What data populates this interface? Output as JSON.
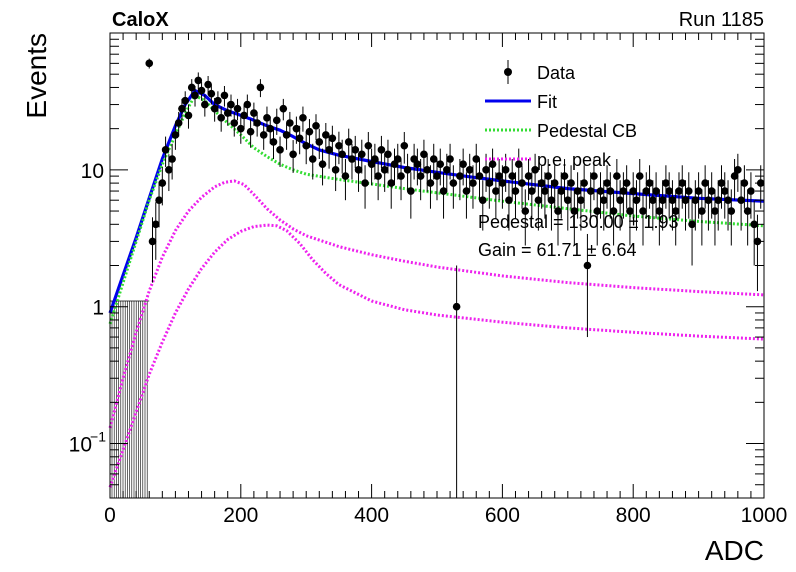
{
  "header": {
    "experiment": "CaloX",
    "run": "Run 1185"
  },
  "chart_data": {
    "type": "scatter",
    "xlabel": "ADC",
    "ylabel": "Events",
    "xlim": [
      0,
      1000
    ],
    "ylim": [
      0.04,
      100
    ],
    "y_scale": "log",
    "x_ticks": [
      0,
      200,
      400,
      600,
      800,
      1000
    ],
    "y_ticks": [
      {
        "value": 0.1,
        "base": "10",
        "exp": "−1"
      },
      {
        "value": 1,
        "base": "1",
        "exp": ""
      },
      {
        "value": 10,
        "base": "10",
        "exp": ""
      }
    ],
    "legend": {
      "position": "top-right",
      "entries": [
        {
          "label": "Data",
          "style": "marker"
        },
        {
          "label": "Fit",
          "style": "solid",
          "color": "#0000ee"
        },
        {
          "label": "Pedestal CB",
          "style": "dotted",
          "color": "#33dd33"
        },
        {
          "label": "p.e. peak",
          "style": "dotted",
          "color": "#ee22ee"
        }
      ]
    },
    "annotations": [
      "Pedestal = 130.00 ± 1.93",
      "Gain = 61.71 ± 6.64"
    ],
    "data_series": {
      "name": "Data",
      "points": [
        [
          60,
          60,
          5
        ],
        [
          65,
          3,
          1.5
        ],
        [
          70,
          4,
          1.8
        ],
        [
          75,
          6,
          2.2
        ],
        [
          80,
          8,
          2.5
        ],
        [
          85,
          14,
          3.5
        ],
        [
          90,
          10,
          3
        ],
        [
          95,
          12,
          3.5
        ],
        [
          100,
          18,
          4
        ],
        [
          105,
          22,
          4.5
        ],
        [
          110,
          28,
          5
        ],
        [
          115,
          32,
          5.5
        ],
        [
          120,
          25,
          5
        ],
        [
          125,
          40,
          6
        ],
        [
          130,
          35,
          6
        ],
        [
          135,
          45,
          6.5
        ],
        [
          140,
          38,
          6
        ],
        [
          145,
          30,
          5.5
        ],
        [
          150,
          42,
          6.5
        ],
        [
          155,
          36,
          6
        ],
        [
          160,
          28,
          5.5
        ],
        [
          165,
          32,
          5.5
        ],
        [
          170,
          24,
          5
        ],
        [
          175,
          35,
          6
        ],
        [
          180,
          26,
          5
        ],
        [
          185,
          30,
          5.5
        ],
        [
          190,
          22,
          4.5
        ],
        [
          195,
          28,
          5
        ],
        [
          200,
          20,
          4.5
        ],
        [
          205,
          25,
          5
        ],
        [
          210,
          30,
          5.5
        ],
        [
          215,
          19,
          4.5
        ],
        [
          220,
          26,
          5
        ],
        [
          225,
          22,
          4.5
        ],
        [
          230,
          40,
          6
        ],
        [
          235,
          18,
          4
        ],
        [
          240,
          24,
          5
        ],
        [
          245,
          20,
          4.5
        ],
        [
          250,
          16,
          4
        ],
        [
          255,
          23,
          5
        ],
        [
          260,
          14,
          3.5
        ],
        [
          265,
          28,
          5
        ],
        [
          270,
          18,
          4
        ],
        [
          275,
          22,
          4.5
        ],
        [
          280,
          13,
          3.5
        ],
        [
          285,
          20,
          4.5
        ],
        [
          290,
          17,
          4
        ],
        [
          295,
          24,
          5
        ],
        [
          300,
          15,
          4
        ],
        [
          305,
          19,
          4.5
        ],
        [
          310,
          12,
          3.5
        ],
        [
          315,
          21,
          4.5
        ],
        [
          320,
          16,
          4
        ],
        [
          325,
          11,
          3.3
        ],
        [
          330,
          18,
          4
        ],
        [
          335,
          14,
          3.8
        ],
        [
          340,
          17,
          4
        ],
        [
          345,
          10,
          3
        ],
        [
          350,
          15,
          4
        ],
        [
          355,
          13,
          3.6
        ],
        [
          360,
          9,
          3
        ],
        [
          365,
          16,
          4
        ],
        [
          370,
          12,
          3.5
        ],
        [
          375,
          14,
          3.7
        ],
        [
          380,
          10,
          3.1
        ],
        [
          385,
          13,
          3.6
        ],
        [
          390,
          8,
          2.8
        ],
        [
          395,
          15,
          3.9
        ],
        [
          400,
          11,
          3.3
        ],
        [
          405,
          12,
          3.5
        ],
        [
          410,
          9,
          3
        ],
        [
          415,
          14,
          3.7
        ],
        [
          420,
          10,
          3.1
        ],
        [
          425,
          13,
          3.6
        ],
        [
          430,
          8,
          2.8
        ],
        [
          435,
          11,
          3.3
        ],
        [
          440,
          12,
          3.5
        ],
        [
          445,
          9,
          3
        ],
        [
          450,
          15,
          3.9
        ],
        [
          455,
          10,
          3.1
        ],
        [
          460,
          7,
          2.6
        ],
        [
          465,
          12,
          3.5
        ],
        [
          470,
          11,
          3.3
        ],
        [
          475,
          9,
          3
        ],
        [
          480,
          13,
          3.6
        ],
        [
          485,
          10,
          3.1
        ],
        [
          490,
          8,
          2.8
        ],
        [
          495,
          12,
          3.5
        ],
        [
          500,
          9,
          3
        ],
        [
          505,
          11,
          3.3
        ],
        [
          510,
          7,
          2.6
        ],
        [
          515,
          10,
          3.1
        ],
        [
          520,
          12,
          3.5
        ],
        [
          525,
          8,
          2.8
        ],
        [
          530,
          1,
          1
        ],
        [
          535,
          9,
          3
        ],
        [
          540,
          11,
          3.3
        ],
        [
          545,
          7,
          2.6
        ],
        [
          550,
          10,
          3.1
        ],
        [
          555,
          8,
          2.8
        ],
        [
          560,
          12,
          3.5
        ],
        [
          565,
          9,
          3
        ],
        [
          570,
          6,
          2.4
        ],
        [
          575,
          10,
          3.1
        ],
        [
          580,
          8,
          2.8
        ],
        [
          585,
          11,
          3.3
        ],
        [
          590,
          7,
          2.6
        ],
        [
          595,
          9,
          3
        ],
        [
          600,
          8,
          2.8
        ],
        [
          605,
          10,
          3.1
        ],
        [
          610,
          6,
          2.4
        ],
        [
          615,
          9,
          3
        ],
        [
          620,
          7,
          2.6
        ],
        [
          625,
          11,
          3.3
        ],
        [
          630,
          8,
          2.8
        ],
        [
          635,
          5,
          2.2
        ],
        [
          640,
          9,
          3
        ],
        [
          645,
          7,
          2.6
        ],
        [
          650,
          10,
          3.1
        ],
        [
          655,
          6,
          2.4
        ],
        [
          660,
          8,
          2.8
        ],
        [
          665,
          7,
          2.6
        ],
        [
          670,
          9,
          3
        ],
        [
          675,
          6,
          2.4
        ],
        [
          680,
          8,
          2.8
        ],
        [
          685,
          5,
          2.2
        ],
        [
          690,
          7,
          2.6
        ],
        [
          695,
          9,
          3
        ],
        [
          700,
          6,
          2.4
        ],
        [
          705,
          8,
          2.8
        ],
        [
          710,
          5,
          2.2
        ],
        [
          715,
          7,
          2.6
        ],
        [
          720,
          6,
          2.4
        ],
        [
          725,
          8,
          2.8
        ],
        [
          730,
          2,
          1.4
        ],
        [
          735,
          7,
          2.6
        ],
        [
          740,
          9,
          3
        ],
        [
          745,
          5,
          2.2
        ],
        [
          750,
          7,
          2.6
        ],
        [
          755,
          6,
          2.4
        ],
        [
          760,
          8,
          2.8
        ],
        [
          765,
          7,
          2.6
        ],
        [
          770,
          5,
          2.2
        ],
        [
          775,
          9,
          3
        ],
        [
          780,
          6,
          2.4
        ],
        [
          785,
          7,
          2.6
        ],
        [
          790,
          8,
          2.8
        ],
        [
          795,
          5,
          2.2
        ],
        [
          800,
          7,
          2.6
        ],
        [
          805,
          6,
          2.4
        ],
        [
          810,
          9,
          3
        ],
        [
          815,
          5,
          2.2
        ],
        [
          820,
          7,
          2.6
        ],
        [
          825,
          8,
          2.8
        ],
        [
          830,
          6,
          2.4
        ],
        [
          835,
          7,
          2.6
        ],
        [
          840,
          5,
          2.2
        ],
        [
          845,
          6,
          2.4
        ],
        [
          850,
          8,
          2.8
        ],
        [
          855,
          7,
          2.6
        ],
        [
          860,
          6,
          2.4
        ],
        [
          865,
          5,
          2.2
        ],
        [
          870,
          7,
          2.6
        ],
        [
          875,
          8,
          2.8
        ],
        [
          880,
          6,
          2.4
        ],
        [
          885,
          7,
          2.6
        ],
        [
          890,
          4,
          2
        ],
        [
          895,
          6,
          2.4
        ],
        [
          900,
          7,
          2.6
        ],
        [
          905,
          5,
          2.2
        ],
        [
          910,
          8,
          2.8
        ],
        [
          915,
          6,
          2.4
        ],
        [
          920,
          7,
          2.6
        ],
        [
          925,
          5,
          2.2
        ],
        [
          930,
          6,
          2.4
        ],
        [
          935,
          8,
          2.8
        ],
        [
          940,
          7,
          2.6
        ],
        [
          945,
          6,
          2.4
        ],
        [
          950,
          5,
          2.2
        ],
        [
          955,
          9,
          3
        ],
        [
          960,
          10,
          3.1
        ],
        [
          965,
          6,
          2.4
        ],
        [
          970,
          8,
          2.8
        ],
        [
          975,
          5,
          2.2
        ],
        [
          980,
          7,
          2.6
        ],
        [
          985,
          4,
          2
        ],
        [
          990,
          3,
          1.7
        ],
        [
          995,
          8,
          2.8
        ]
      ]
    },
    "curves": [
      {
        "name": "Fit",
        "color": "#0000ee",
        "points": [
          [
            0,
            0.9
          ],
          [
            20,
            1.7
          ],
          [
            40,
            3.2
          ],
          [
            60,
            6.2
          ],
          [
            80,
            12
          ],
          [
            100,
            21
          ],
          [
            115,
            30
          ],
          [
            130,
            38
          ],
          [
            145,
            35
          ],
          [
            160,
            30
          ],
          [
            180,
            27
          ],
          [
            200,
            25
          ],
          [
            220,
            23
          ],
          [
            240,
            21
          ],
          [
            260,
            19.5
          ],
          [
            280,
            17.5
          ],
          [
            300,
            15.5
          ],
          [
            320,
            14
          ],
          [
            350,
            12.8
          ],
          [
            400,
            11.5
          ],
          [
            450,
            10.4
          ],
          [
            500,
            9.6
          ],
          [
            550,
            8.9
          ],
          [
            600,
            8.3
          ],
          [
            700,
            7.3
          ],
          [
            800,
            6.7
          ],
          [
            900,
            6.2
          ],
          [
            1000,
            5.9
          ]
        ]
      },
      {
        "name": "Pedestal CB",
        "color": "#33dd33",
        "points": [
          [
            0,
            0.75
          ],
          [
            20,
            1.5
          ],
          [
            40,
            3
          ],
          [
            60,
            6
          ],
          [
            80,
            11
          ],
          [
            100,
            18
          ],
          [
            115,
            26
          ],
          [
            130,
            35
          ],
          [
            145,
            32
          ],
          [
            160,
            27
          ],
          [
            180,
            22
          ],
          [
            200,
            18
          ],
          [
            220,
            14.5
          ],
          [
            240,
            12.5
          ],
          [
            260,
            11
          ],
          [
            280,
            10
          ],
          [
            300,
            9.3
          ],
          [
            350,
            8.5
          ],
          [
            400,
            7.9
          ],
          [
            450,
            7.3
          ],
          [
            500,
            6.8
          ],
          [
            600,
            5.9
          ],
          [
            700,
            5.2
          ],
          [
            800,
            4.6
          ],
          [
            900,
            4.2
          ],
          [
            1000,
            3.9
          ]
        ]
      },
      {
        "name": "p.e. peak",
        "color": "#ee22ee",
        "points": [
          [
            0,
            0.13
          ],
          [
            20,
            0.3
          ],
          [
            40,
            0.65
          ],
          [
            60,
            1.3
          ],
          [
            80,
            2.3
          ],
          [
            100,
            3.6
          ],
          [
            120,
            5
          ],
          [
            140,
            6.3
          ],
          [
            160,
            7.5
          ],
          [
            175,
            8.1
          ],
          [
            190,
            8.3
          ],
          [
            205,
            7.8
          ],
          [
            220,
            6.6
          ],
          [
            240,
            5.2
          ],
          [
            260,
            4.3
          ],
          [
            280,
            3.7
          ],
          [
            300,
            3.3
          ],
          [
            350,
            2.75
          ],
          [
            400,
            2.4
          ],
          [
            450,
            2.15
          ],
          [
            500,
            1.95
          ],
          [
            600,
            1.68
          ],
          [
            700,
            1.5
          ],
          [
            800,
            1.38
          ],
          [
            900,
            1.29
          ],
          [
            1000,
            1.22
          ]
        ]
      },
      {
        "name": "p.e. peak",
        "color": "#ee22ee",
        "points": [
          [
            0,
            0.048
          ],
          [
            20,
            0.09
          ],
          [
            40,
            0.17
          ],
          [
            60,
            0.32
          ],
          [
            80,
            0.55
          ],
          [
            100,
            0.9
          ],
          [
            120,
            1.35
          ],
          [
            140,
            1.9
          ],
          [
            160,
            2.5
          ],
          [
            180,
            3.1
          ],
          [
            200,
            3.55
          ],
          [
            220,
            3.85
          ],
          [
            240,
            3.95
          ],
          [
            255,
            3.9
          ],
          [
            270,
            3.6
          ],
          [
            290,
            2.9
          ],
          [
            310,
            2.2
          ],
          [
            330,
            1.75
          ],
          [
            350,
            1.45
          ],
          [
            400,
            1.1
          ],
          [
            450,
            0.95
          ],
          [
            500,
            0.87
          ],
          [
            600,
            0.77
          ],
          [
            700,
            0.7
          ],
          [
            800,
            0.65
          ],
          [
            900,
            0.61
          ],
          [
            1000,
            0.58
          ]
        ]
      }
    ],
    "pedestal_band": {
      "x_range": [
        0,
        60
      ],
      "y_range": [
        0.04,
        1.1
      ]
    }
  }
}
